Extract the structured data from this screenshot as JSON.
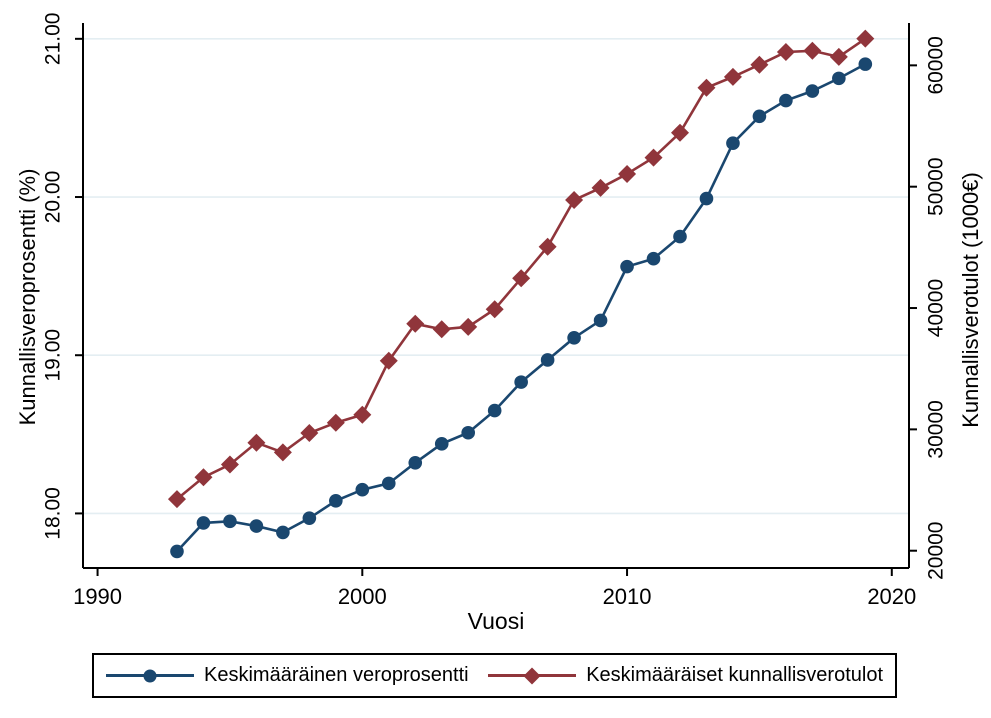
{
  "chart_data": {
    "type": "line",
    "title": "",
    "xlabel": "Vuosi",
    "ylabel_left": "Kunnallisveroprosentti (%)",
    "ylabel_right": "Kunnallisverotulot (1000€)",
    "x_range": [
      1989.45,
      2020.65
    ],
    "y_left_range": [
      17.655,
      21.1
    ],
    "y_right_range": [
      18575,
      63490
    ],
    "x_ticks": [
      {
        "v": 1990,
        "label": "1990"
      },
      {
        "v": 2000,
        "label": "2000"
      },
      {
        "v": 2010,
        "label": "2010"
      },
      {
        "v": 2020,
        "label": "2020"
      }
    ],
    "y_left_ticks": [
      {
        "v": 18,
        "label": "18.00"
      },
      {
        "v": 19,
        "label": "19.00"
      },
      {
        "v": 20,
        "label": "20.00"
      },
      {
        "v": 21,
        "label": "21.00"
      }
    ],
    "y_right_ticks": [
      {
        "v": 20000,
        "label": "20000"
      },
      {
        "v": 30000,
        "label": "30000"
      },
      {
        "v": 40000,
        "label": "40000"
      },
      {
        "v": 50000,
        "label": "50000"
      },
      {
        "v": 60000,
        "label": "60000"
      }
    ],
    "grid": {
      "horizontal": true,
      "on_ticks": "left",
      "color": "#e4eef2"
    },
    "axis_color": "#000000",
    "x": [
      1993,
      1994,
      1995,
      1996,
      1997,
      1998,
      1999,
      2000,
      2001,
      2002,
      2003,
      2004,
      2005,
      2006,
      2007,
      2008,
      2009,
      2010,
      2011,
      2012,
      2013,
      2014,
      2015,
      2016,
      2017,
      2018,
      2019
    ],
    "series": [
      {
        "name": "Keskimääräinen veroprosentti",
        "axis": "left",
        "marker": "circle",
        "color": "#1a476f",
        "values": [
          17.76,
          17.94,
          17.95,
          17.92,
          17.88,
          17.97,
          18.08,
          18.15,
          18.19,
          18.32,
          18.44,
          18.51,
          18.65,
          18.83,
          18.97,
          19.11,
          19.22,
          19.56,
          19.61,
          19.75,
          19.99,
          20.34,
          20.51,
          20.61,
          20.67,
          20.75,
          20.84
        ]
      },
      {
        "name": "Keskimääräiset kunnallisverotulot",
        "axis": "right",
        "marker": "diamond",
        "color": "#90353b",
        "values": [
          24250,
          26050,
          27100,
          28900,
          28100,
          29700,
          30550,
          31200,
          35650,
          38700,
          38250,
          38450,
          39900,
          42450,
          45050,
          48900,
          49900,
          51050,
          52400,
          54450,
          58150,
          59050,
          60050,
          61100,
          61200,
          60700,
          62200
        ]
      }
    ],
    "legend_position": "bottom"
  }
}
